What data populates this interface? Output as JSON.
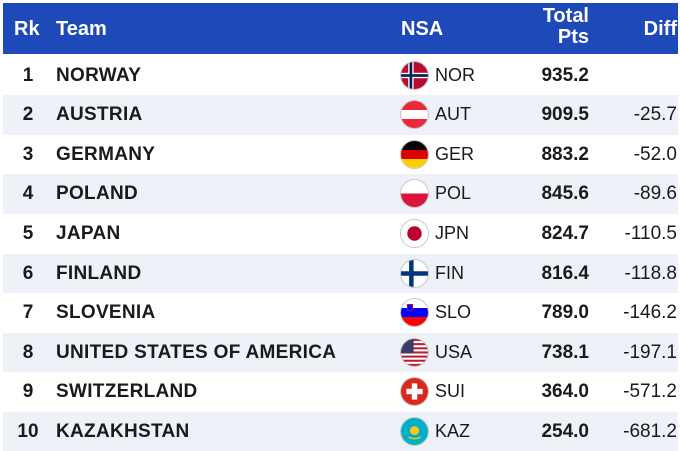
{
  "header": {
    "rk": "Rk",
    "team": "Team",
    "nsa": "NSA",
    "total_line1": "Total",
    "total_line2": "Pts",
    "diff": "Diff"
  },
  "rows": [
    {
      "rk": "1",
      "team": "NORWAY",
      "nsa": "NOR",
      "pts": "935.2",
      "diff": "",
      "flag_icon": "norway-flag-icon"
    },
    {
      "rk": "2",
      "team": "AUSTRIA",
      "nsa": "AUT",
      "pts": "909.5",
      "diff": "-25.7",
      "flag_icon": "austria-flag-icon"
    },
    {
      "rk": "3",
      "team": "GERMANY",
      "nsa": "GER",
      "pts": "883.2",
      "diff": "-52.0",
      "flag_icon": "germany-flag-icon"
    },
    {
      "rk": "4",
      "team": "POLAND",
      "nsa": "POL",
      "pts": "845.6",
      "diff": "-89.6",
      "flag_icon": "poland-flag-icon"
    },
    {
      "rk": "5",
      "team": "JAPAN",
      "nsa": "JPN",
      "pts": "824.7",
      "diff": "-110.5",
      "flag_icon": "japan-flag-icon"
    },
    {
      "rk": "6",
      "team": "FINLAND",
      "nsa": "FIN",
      "pts": "816.4",
      "diff": "-118.8",
      "flag_icon": "finland-flag-icon"
    },
    {
      "rk": "7",
      "team": "SLOVENIA",
      "nsa": "SLO",
      "pts": "789.0",
      "diff": "-146.2",
      "flag_icon": "slovenia-flag-icon"
    },
    {
      "rk": "8",
      "team": "UNITED STATES OF AMERICA",
      "nsa": "USA",
      "pts": "738.1",
      "diff": "-197.1",
      "flag_icon": "usa-flag-icon"
    },
    {
      "rk": "9",
      "team": "SWITZERLAND",
      "nsa": "SUI",
      "pts": "364.0",
      "diff": "-571.2",
      "flag_icon": "switzerland-flag-icon"
    },
    {
      "rk": "10",
      "team": "KAZAKHSTAN",
      "nsa": "KAZ",
      "pts": "254.0",
      "diff": "-681.2",
      "flag_icon": "kazakhstan-flag-icon"
    }
  ],
  "colors": {
    "header_bg": "#1e49b8",
    "header_text": "#ffffff",
    "row_alt_bg": "#eef1f7"
  }
}
